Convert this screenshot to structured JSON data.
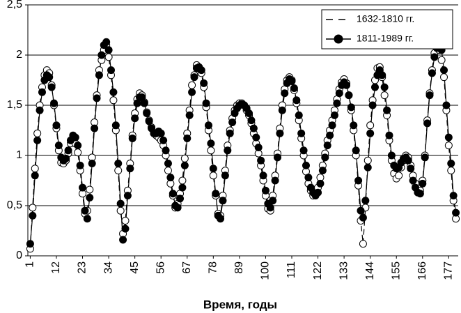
{
  "chart_data": {
    "type": "line",
    "xlabel": "Время, годы",
    "x": [
      1,
      2,
      3,
      4,
      5,
      6,
      7,
      8,
      9,
      10,
      11,
      12,
      13,
      14,
      15,
      16,
      17,
      18,
      19,
      20,
      21,
      22,
      23,
      24,
      25,
      26,
      27,
      28,
      29,
      30,
      31,
      32,
      33,
      34,
      35,
      36,
      37,
      38,
      39,
      40,
      41,
      42,
      43,
      44,
      45,
      46,
      47,
      48,
      49,
      50,
      51,
      52,
      53,
      54,
      55,
      56,
      57,
      58,
      59,
      60,
      61,
      62,
      63,
      64,
      65,
      66,
      67,
      68,
      69,
      70,
      71,
      72,
      73,
      74,
      75,
      76,
      77,
      78,
      79,
      80,
      81,
      82,
      83,
      84,
      85,
      86,
      87,
      88,
      89,
      90,
      91,
      92,
      93,
      94,
      95,
      96,
      97,
      98,
      99,
      100,
      101,
      102,
      103,
      104,
      105,
      106,
      107,
      108,
      109,
      110,
      111,
      112,
      113,
      114,
      115,
      116,
      117,
      118,
      119,
      120,
      121,
      122,
      123,
      124,
      125,
      126,
      127,
      128,
      129,
      130,
      131,
      132,
      133,
      134,
      135,
      136,
      137,
      138,
      139,
      140,
      141,
      142,
      143,
      144,
      145,
      146,
      147,
      148,
      149,
      150,
      151,
      152,
      153,
      154,
      155,
      156,
      157,
      158,
      159,
      160,
      161,
      162,
      163,
      164,
      165,
      166,
      167,
      168,
      169,
      170,
      171,
      172,
      173,
      174,
      175,
      176,
      177,
      178,
      179,
      180
    ],
    "series": [
      {
        "name": "1632-1810 гг.",
        "color": "#000000",
        "linestyle": "dashed",
        "marker_fill": "#ffffff",
        "values": [
          0.07,
          0.48,
          0.87,
          1.22,
          1.5,
          1.68,
          1.8,
          1.85,
          1.82,
          1.7,
          1.5,
          1.27,
          1.05,
          0.93,
          0.92,
          0.95,
          1.02,
          1.12,
          1.15,
          1.12,
          1.03,
          0.85,
          0.62,
          0.42,
          0.45,
          0.66,
          0.98,
          1.33,
          1.6,
          1.85,
          1.95,
          2.05,
          2.1,
          1.98,
          1.8,
          1.55,
          1.25,
          0.85,
          0.45,
          0.22,
          0.35,
          0.65,
          0.92,
          1.2,
          1.42,
          1.56,
          1.62,
          1.6,
          1.53,
          1.43,
          1.35,
          1.28,
          1.22,
          1.2,
          1.18,
          1.15,
          1.1,
          1.0,
          0.85,
          0.72,
          0.6,
          0.48,
          0.52,
          0.62,
          0.75,
          0.97,
          1.22,
          1.45,
          1.7,
          1.8,
          1.9,
          1.87,
          1.82,
          1.68,
          1.48,
          1.25,
          1.05,
          0.8,
          0.6,
          0.42,
          0.4,
          0.6,
          0.85,
          1.1,
          1.25,
          1.37,
          1.45,
          1.5,
          1.52,
          1.52,
          1.5,
          1.45,
          1.4,
          1.32,
          1.22,
          1.12,
          1.02,
          0.9,
          0.75,
          0.6,
          0.47,
          0.45,
          0.6,
          0.8,
          1.02,
          1.27,
          1.5,
          1.66,
          1.75,
          1.78,
          1.75,
          1.65,
          1.52,
          1.35,
          1.17,
          1.0,
          0.84,
          0.72,
          0.65,
          0.6,
          0.62,
          0.68,
          0.78,
          0.9,
          1.02,
          1.15,
          1.25,
          1.35,
          1.45,
          1.56,
          1.66,
          1.73,
          1.76,
          1.72,
          1.6,
          1.45,
          1.25,
          1.0,
          0.7,
          0.35,
          0.12,
          0.48,
          0.95,
          1.3,
          1.55,
          1.75,
          1.87,
          1.88,
          1.78,
          1.6,
          1.4,
          1.15,
          0.95,
          0.82,
          0.77,
          0.8,
          0.88,
          0.95,
          1.0,
          0.98,
          0.9,
          0.8,
          0.72,
          0.65,
          0.65,
          0.75,
          1.0,
          1.35,
          1.62,
          1.85,
          2.02,
          2.1,
          2.05,
          1.95,
          1.78,
          1.45,
          1.1,
          0.85,
          0.55,
          0.37
        ]
      },
      {
        "name": "1811-1989 гг.",
        "color": "#000000",
        "linestyle": "solid",
        "marker_fill": "#000000",
        "values": [
          0.12,
          0.4,
          0.8,
          1.15,
          1.45,
          1.63,
          1.75,
          1.8,
          1.78,
          1.68,
          1.52,
          1.3,
          1.1,
          0.98,
          0.95,
          0.97,
          1.05,
          1.15,
          1.2,
          1.18,
          1.1,
          0.9,
          0.68,
          0.45,
          0.37,
          0.58,
          0.92,
          1.27,
          1.57,
          1.8,
          2.0,
          2.1,
          2.13,
          2.05,
          1.85,
          1.63,
          1.3,
          0.92,
          0.52,
          0.16,
          0.27,
          0.6,
          0.87,
          1.17,
          1.37,
          1.52,
          1.58,
          1.58,
          1.52,
          1.42,
          1.34,
          1.27,
          1.22,
          1.22,
          1.24,
          1.22,
          1.15,
          1.05,
          0.92,
          0.78,
          0.62,
          0.5,
          0.48,
          0.57,
          0.68,
          0.9,
          1.17,
          1.4,
          1.63,
          1.78,
          1.87,
          1.88,
          1.85,
          1.72,
          1.52,
          1.3,
          1.12,
          0.87,
          0.62,
          0.4,
          0.37,
          0.55,
          0.8,
          1.05,
          1.22,
          1.33,
          1.42,
          1.47,
          1.5,
          1.51,
          1.5,
          1.47,
          1.42,
          1.35,
          1.27,
          1.18,
          1.08,
          0.95,
          0.8,
          0.65,
          0.52,
          0.48,
          0.55,
          0.75,
          0.98,
          1.22,
          1.45,
          1.62,
          1.72,
          1.76,
          1.74,
          1.67,
          1.55,
          1.4,
          1.22,
          1.05,
          0.9,
          0.78,
          0.68,
          0.63,
          0.6,
          0.63,
          0.72,
          0.85,
          0.98,
          1.1,
          1.2,
          1.3,
          1.4,
          1.52,
          1.62,
          1.7,
          1.73,
          1.7,
          1.6,
          1.48,
          1.3,
          1.05,
          0.75,
          0.45,
          0.38,
          0.55,
          0.88,
          1.22,
          1.5,
          1.68,
          1.8,
          1.85,
          1.8,
          1.68,
          1.45,
          1.2,
          1.0,
          0.9,
          0.87,
          0.88,
          0.93,
          0.97,
          0.98,
          0.95,
          0.87,
          0.75,
          0.68,
          0.63,
          0.62,
          0.72,
          0.98,
          1.32,
          1.6,
          1.82,
          1.98,
          2.07,
          2.1,
          2.05,
          1.85,
          1.5,
          1.18,
          0.92,
          0.6,
          0.43
        ]
      }
    ],
    "xlim": [
      0,
      181
    ],
    "xticks": [
      1,
      12,
      23,
      34,
      45,
      56,
      67,
      78,
      89,
      100,
      111,
      122,
      133,
      144,
      155,
      166,
      177
    ],
    "ylim": [
      0,
      2.5
    ],
    "yticks": [
      0,
      {
        "value": 0.5,
        "label": "0,5"
      },
      1,
      {
        "value": 1.5,
        "label": "1,5"
      },
      2,
      {
        "value": 2.5,
        "label": "2,5"
      }
    ],
    "grid": true,
    "legend": "upper right"
  }
}
